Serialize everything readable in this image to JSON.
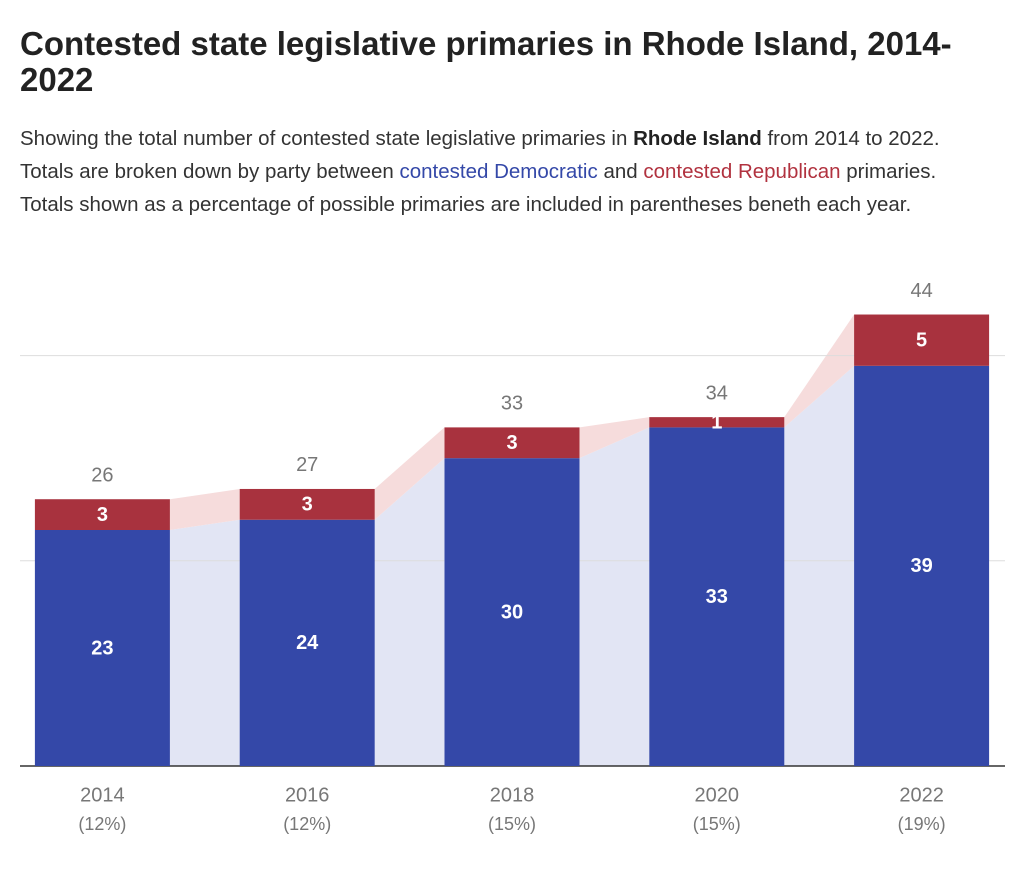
{
  "chart_data": {
    "type": "stacked_bar",
    "title": "Contested state legislative primaries in Rhode Island, 2014-2022",
    "subtitle_parts": [
      "Showing the total number of contested state legislative primaries in ",
      "Rhode Island",
      " from 2014 to 2022. Totals are broken down by party between ",
      "contested Democratic",
      " and ",
      "contested Republican",
      " primaries. Totals shown as a percentage of possible primaries are included in parentheses beneth each year."
    ],
    "categories": [
      "2014",
      "2016",
      "2018",
      "2020",
      "2022"
    ],
    "category_sublabels": [
      "(12%)",
      "(12%)",
      "(15%)",
      "(15%)",
      "(19%)"
    ],
    "series": [
      {
        "name": "contested Democratic",
        "color": "#3448a8",
        "connector_color": "#e2e5f4",
        "values": [
          23,
          24,
          30,
          33,
          39
        ]
      },
      {
        "name": "contested Republican",
        "color": "#a8323e",
        "connector_color": "#f6dcdc",
        "values": [
          3,
          3,
          3,
          1,
          5
        ]
      }
    ],
    "totals": [
      26,
      27,
      33,
      34,
      44
    ],
    "ylim": [
      0,
      46
    ],
    "yticks": [
      0,
      20,
      40
    ],
    "grid": true
  }
}
